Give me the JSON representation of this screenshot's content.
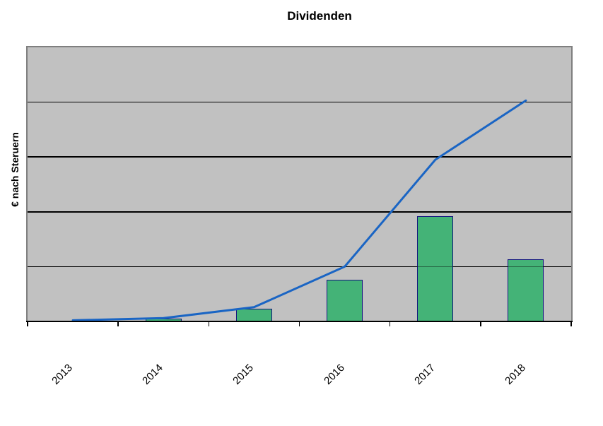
{
  "title": "Dividenden",
  "y_axis": {
    "label": "€ nach Steruern",
    "numeric_tick_labels_visible": false
  },
  "x_axis": {
    "labels": [
      "2013",
      "2014",
      "2015",
      "2016",
      "2017",
      "2018"
    ]
  },
  "chart_data": {
    "type": "bar",
    "subtype": "combo: bars + line, no legend, no numeric y-axis labels",
    "title": "Dividenden",
    "xlabel": "",
    "ylabel": "€ nach Steruern",
    "categories": [
      "2013",
      "2014",
      "2015",
      "2016",
      "2017",
      "2018"
    ],
    "series": [
      {
        "name": "bars",
        "type": "bar",
        "values": [
          0,
          0.05,
          0.23,
          0.76,
          1.92,
          1.13
        ]
      },
      {
        "name": "line",
        "type": "line",
        "values": [
          0.02,
          0.06,
          0.26,
          1.0,
          2.95,
          4.03
        ]
      }
    ],
    "value_units": "gridline intervals (y axis has 5 equal divisions, unlabeled)",
    "ylim": [
      0,
      5
    ],
    "gridlines": "horizontal black lines at each of 4 inner divisions",
    "legend": "none"
  },
  "colors": {
    "page_bg": "#ffffff",
    "plot_bg": "#c1c1c1",
    "plot_border": "#7f7f7f",
    "gridline": "#000000",
    "axis": "#000000",
    "bar_fill": "#44b377",
    "bar_border": "#13157f",
    "line": "#1a65c4",
    "text": "#000000"
  }
}
